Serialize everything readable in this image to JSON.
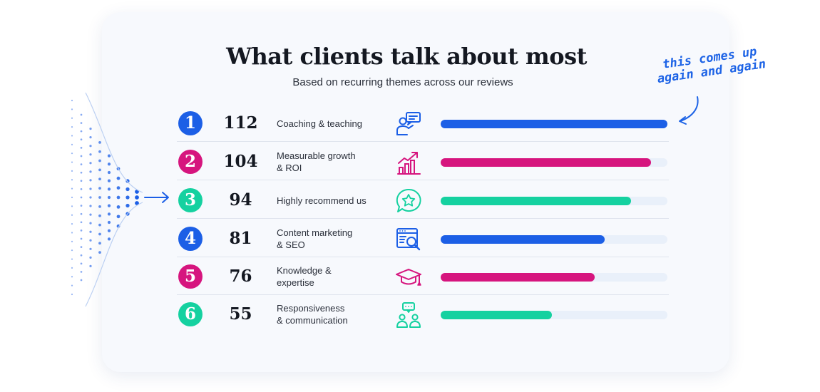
{
  "title": "What clients talk about most",
  "subtitle": "Based on recurring themes across our reviews",
  "annotation": "this comes up again and again",
  "colors": {
    "blue": "#1c5fe6",
    "magenta": "#d6157e",
    "teal": "#15d1a0"
  },
  "chart_data": {
    "type": "bar",
    "categories": [
      "Coaching & teaching",
      "Measurable growth\n& ROI",
      "Highly recommend us",
      "Content marketing\n& SEO",
      "Knowledge &\nexpertise",
      "Responsiveness\n& communication"
    ],
    "ranks": [
      "1",
      "2",
      "3",
      "4",
      "5",
      "6"
    ],
    "values": [
      112,
      104,
      94,
      81,
      76,
      55
    ],
    "bar_colors": [
      "#1c5fe6",
      "#d6157e",
      "#15d1a0",
      "#1c5fe6",
      "#d6157e",
      "#15d1a0"
    ],
    "icons": [
      "coaching-icon",
      "growth-chart-icon",
      "star-chat-icon",
      "seo-search-icon",
      "graduation-cap-icon",
      "team-chat-icon"
    ],
    "xlim": [
      0,
      112
    ],
    "grid": false,
    "legend": "none"
  }
}
